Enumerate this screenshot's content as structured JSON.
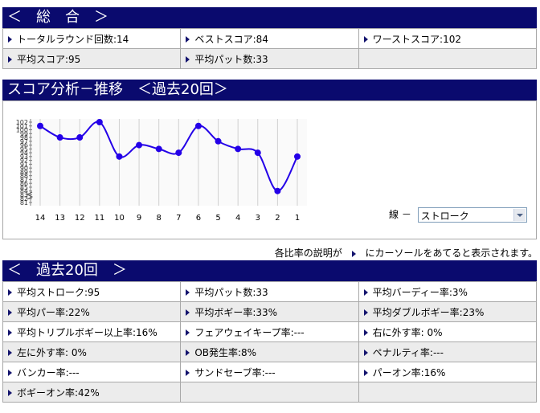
{
  "summary": {
    "title": "＜　総　合　＞",
    "rows": [
      [
        "トータルラウンド回数:14",
        "ベストスコア:84",
        "ワーストスコア:102"
      ],
      [
        "平均スコア:95",
        "平均パット数:33",
        ""
      ]
    ]
  },
  "trend": {
    "title": "スコア分析－推移　＜過去20回＞",
    "line_label": "線 －",
    "line_select_value": "ストローク"
  },
  "chart_data": {
    "type": "line",
    "categories": [
      "14",
      "13",
      "12",
      "11",
      "10",
      "9",
      "8",
      "7",
      "6",
      "5",
      "4",
      "3",
      "2",
      "1"
    ],
    "values": [
      101,
      98,
      98,
      102,
      93,
      96,
      95,
      94,
      101,
      97,
      95,
      94,
      84,
      93
    ],
    "y_min": 81,
    "y_max": 102,
    "y_axis_break": true,
    "grid": true,
    "line_color": "#2400e8",
    "title": "",
    "xlabel": "",
    "ylabel": ""
  },
  "note": {
    "before": "各比率の説明が",
    "after": "にカーソールをあてると表示されます。"
  },
  "past20": {
    "title": "＜　過去20回　＞",
    "rows": [
      [
        "平均ストローク:95",
        "平均パット数:33",
        "平均バーディー率:3%"
      ],
      [
        "平均パー率:22%",
        "平均ボギー率:33%",
        "平均ダブルボギー率:23%"
      ],
      [
        "平均トリプルボギー以上率:16%",
        "フェアウェイキープ率:---",
        "右に外す率: 0%"
      ],
      [
        "左に外す率: 0%",
        "OB発生率:8%",
        "ペナルティ率:---"
      ],
      [
        "バンカー率:---",
        "サンドセーブ率:---",
        "パーオン率:16%"
      ],
      [
        "ボギーオン率:42%",
        "",
        ""
      ]
    ]
  },
  "colors": {
    "header_bg": "#0a0a6e",
    "header_text": "#ffffff",
    "alt_row": "#ececec",
    "border": "#a8a8a8"
  }
}
